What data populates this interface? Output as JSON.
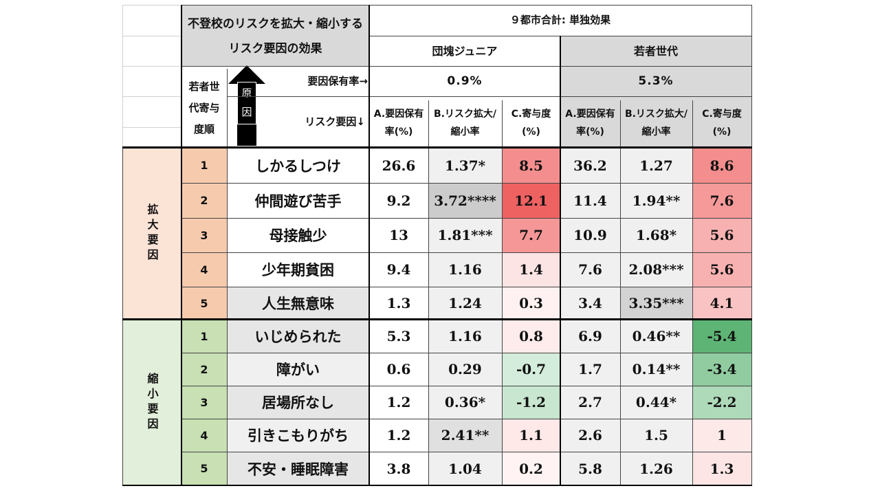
{
  "title": "不登校のリスクを拡大・縮小するリスク要因の効果",
  "header": {
    "city_total": "９都市合計: 単独効果",
    "groups": [
      {
        "name": "団塊ジュニア",
        "rate": "0.9%"
      },
      {
        "name": "若者世代",
        "rate": "5.3%"
      }
    ],
    "rank_header": "若者世代寄与度順",
    "cause_box": "原因",
    "rate_label": "要因保有率→",
    "risk_label": "リスク要因↓",
    "col_a": "A.要因保有率(%)",
    "col_b": "B.リスク拡大/縮小率",
    "col_c": "C.寄与度(%)"
  },
  "sections": [
    {
      "label": "拡大要因",
      "color": "#f6cbad",
      "rows": [
        {
          "rank": "1",
          "name": "しかるしつけ",
          "a1": "26.6",
          "b1": "1.37*",
          "c1": "8.5",
          "a2": "36.2",
          "b2": "1.27",
          "c2": "8.6"
        },
        {
          "rank": "2",
          "name": "仲間遊び苦手",
          "a1": "9.2",
          "b1": "3.72****",
          "c1": "12.1",
          "a2": "11.4",
          "b2": "1.94**",
          "c2": "7.6"
        },
        {
          "rank": "3",
          "name": "母接触少",
          "a1": "13",
          "b1": "1.81***",
          "c1": "7.7",
          "a2": "10.9",
          "b2": "1.68*",
          "c2": "5.6"
        },
        {
          "rank": "4",
          "name": "少年期貧困",
          "a1": "9.4",
          "b1": "1.16",
          "c1": "1.4",
          "a2": "7.6",
          "b2": "2.08***",
          "c2": "5.6"
        },
        {
          "rank": "5",
          "name": "人生無意味",
          "a1": "1.3",
          "b1": "1.24",
          "c1": "0.3",
          "a2": "3.4",
          "b2": "3.35***",
          "c2": "4.1"
        }
      ]
    },
    {
      "label": "縮小要因",
      "color": "#c8e0b4",
      "rows": [
        {
          "rank": "1",
          "name": "いじめられた",
          "a1": "5.3",
          "b1": "1.16",
          "c1": "0.8",
          "a2": "6.9",
          "b2": "0.46**",
          "c2": "-5.4"
        },
        {
          "rank": "2",
          "name": "障がい",
          "a1": "0.6",
          "b1": "0.29",
          "c1": "-0.7",
          "a2": "1.7",
          "b2": "0.14**",
          "c2": "-3.4"
        },
        {
          "rank": "3",
          "name": "居場所なし",
          "a1": "1.2",
          "b1": "0.36*",
          "c1": "-1.2",
          "a2": "2.7",
          "b2": "0.44*",
          "c2": "-2.2"
        },
        {
          "rank": "4",
          "name": "引きこもりがち",
          "a1": "1.2",
          "b1": "2.41**",
          "c1": "1.1",
          "a2": "2.6",
          "b2": "1.5",
          "c2": "1"
        },
        {
          "rank": "5",
          "name": "不安・睡眠障害",
          "a1": "3.8",
          "b1": "1.04",
          "c1": "0.2",
          "a2": "5.8",
          "b2": "1.26",
          "c2": "1.3"
        }
      ]
    }
  ],
  "colors": {
    "gray_header": "#d9d9d9",
    "light_gray": "#f0f0f0",
    "positive_strong": "#ef6262",
    "negative_strong": "#5db474",
    "expand_label_bg": "#fbe3d6",
    "shrink_label_bg": "#e2efda"
  }
}
